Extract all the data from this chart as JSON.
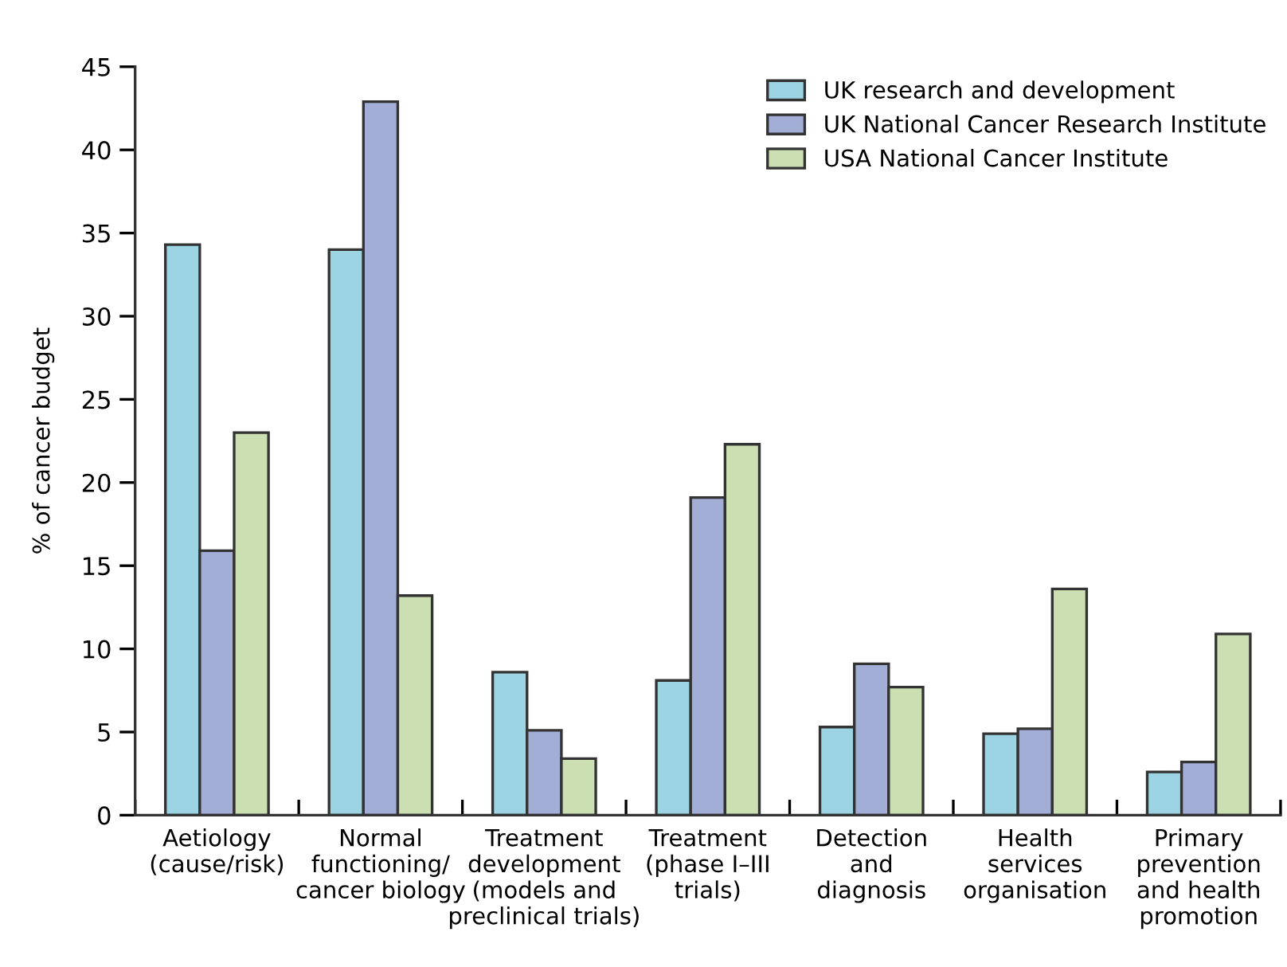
{
  "chart_data": {
    "type": "bar",
    "ylabel": "% of cancer budget",
    "categories": [
      "Aetiology\n(cause/risk)",
      "Normal\nfunctioning/\ncancer biology",
      "Treatment\ndevelopment\n(models and\npreclinical trials)",
      "Treatment\n(phase I–III\ntrials)",
      "Detection\nand\ndiagnosis",
      "Health\nservices\norganisation",
      "Primary\nprevention\nand health\npromotion"
    ],
    "series": [
      {
        "name": "UK research and development",
        "color": "#9dd4e3",
        "values": [
          34.3,
          34.0,
          8.6,
          8.1,
          5.3,
          4.9,
          2.6
        ]
      },
      {
        "name": "UK National Cancer Research Institute",
        "color": "#a3aed6",
        "values": [
          15.9,
          42.9,
          5.1,
          19.1,
          9.1,
          5.2,
          3.2
        ]
      },
      {
        "name": "USA National Cancer Institute",
        "color": "#cbdfb2",
        "values": [
          23.0,
          13.2,
          3.4,
          22.3,
          7.7,
          13.6,
          10.9
        ]
      }
    ],
    "ylim": [
      0,
      45
    ],
    "yticks": [
      0,
      5,
      10,
      15,
      20,
      25,
      30,
      35,
      40,
      45
    ],
    "grid": false,
    "legend": "top right"
  }
}
